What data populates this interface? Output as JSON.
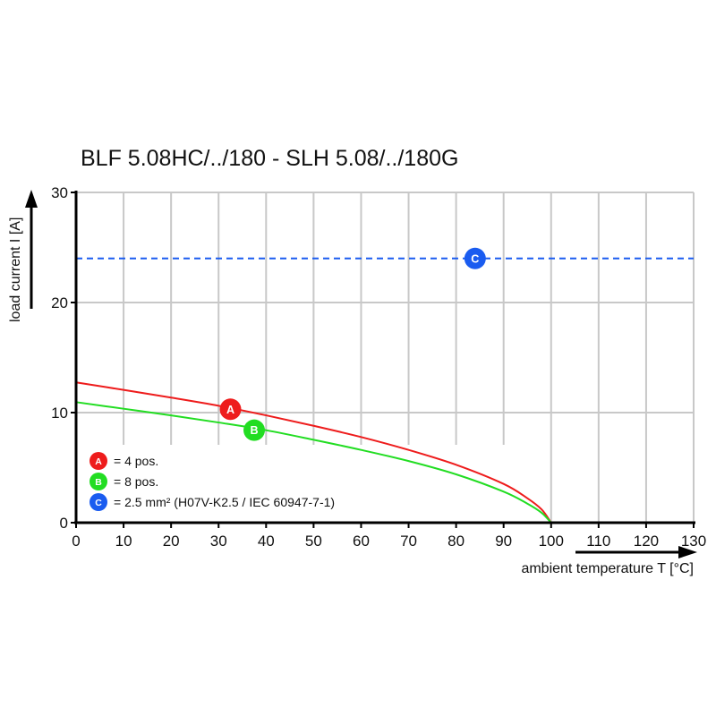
{
  "chart_data": {
    "type": "line",
    "title": "BLF 5.08HC/../180 - SLH 5.08/../180G",
    "xlabel": "ambient temperature T [°C]",
    "ylabel": "load current I [A]",
    "xlim": [
      0,
      130
    ],
    "ylim": [
      0,
      30
    ],
    "xticks": [
      0,
      10,
      20,
      30,
      40,
      50,
      60,
      70,
      80,
      90,
      100,
      110,
      120,
      130
    ],
    "yticks": [
      0,
      10,
      20,
      30
    ],
    "grid": true,
    "series": [
      {
        "name": "A",
        "label": "= 4 pos.",
        "color": "#ee1c1c",
        "style": "solid",
        "x": [
          0,
          10,
          20,
          30,
          40,
          50,
          60,
          70,
          80,
          90,
          95,
          98,
          100
        ],
        "y": [
          12.74,
          12.06,
          11.36,
          10.62,
          9.75,
          8.8,
          7.78,
          6.61,
          5.26,
          3.52,
          2.22,
          1.2,
          0
        ],
        "marker_at": [
          32.5,
          10.3
        ]
      },
      {
        "name": "B",
        "label": "= 8 pos.",
        "color": "#22dd22",
        "style": "solid",
        "x": [
          0,
          10,
          20,
          30,
          40,
          50,
          60,
          70,
          80,
          90,
          95,
          98,
          100
        ],
        "y": [
          10.95,
          10.35,
          9.75,
          9.1,
          8.4,
          7.53,
          6.61,
          5.6,
          4.39,
          2.82,
          1.73,
          0.9,
          0
        ],
        "marker_at": [
          37.5,
          8.4
        ]
      },
      {
        "name": "C",
        "label": "= 2.5 mm² (H07V-K2.5 / IEC 60947-7-1)",
        "color": "#1a5cf0",
        "style": "dashed",
        "x": [
          0,
          130
        ],
        "y": [
          24,
          24
        ],
        "marker_at": [
          84,
          24
        ]
      }
    ],
    "legend_placement": "bottom-left"
  }
}
